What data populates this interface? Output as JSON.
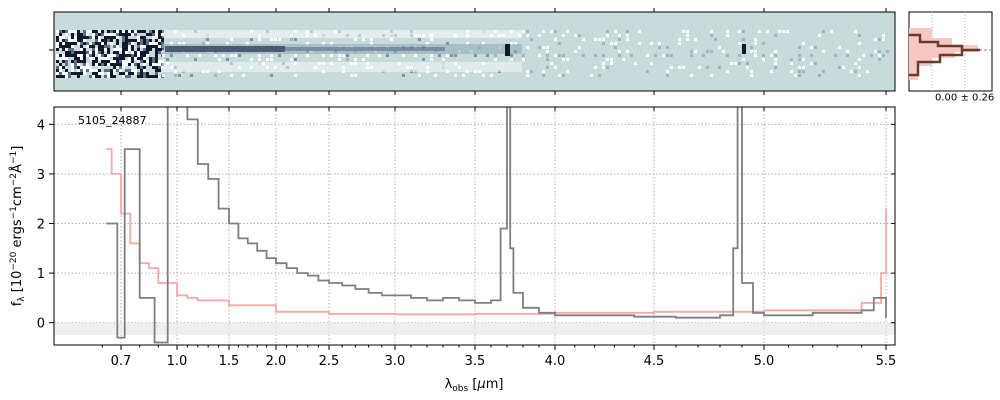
{
  "chart_data": [
    {
      "panel": "spectrum",
      "type": "line",
      "object_label": "5105_24887",
      "xlabel": "λ_obs [μm]",
      "ylabel": "f_λ [10^-20 ergs^-1 cm^-2 Å^-1]",
      "xlim": [
        0.58,
        5.52
      ],
      "ylim": [
        -0.45,
        4.35
      ],
      "x_scale": "reciprocal-like (tick spacing compresses toward long wavelengths)",
      "xtick_labels": [
        "0.7",
        "1.0",
        "1.5",
        "2.0",
        "2.5",
        "3.0",
        "3.5",
        "4.0",
        "4.5",
        "5.0",
        "5.5"
      ],
      "xtick_values": [
        0.7,
        1.0,
        1.5,
        2.0,
        2.5,
        3.0,
        3.5,
        4.0,
        4.5,
        5.0,
        5.5
      ],
      "ytick_labels": [
        "0",
        "1",
        "2",
        "3",
        "4"
      ],
      "ytick_values": [
        0,
        1,
        2,
        3,
        4
      ],
      "grid": true,
      "colors": {
        "data": "#7f7f7f",
        "error": "#f4a9a8",
        "zero_band": "#d9d9d9"
      },
      "series": [
        {
          "role": "data",
          "x": [
            0.62,
            0.68,
            0.72,
            0.8,
            0.88,
            0.95,
            1.0,
            1.05,
            1.1,
            1.2,
            1.3,
            1.4,
            1.5,
            1.6,
            1.7,
            1.8,
            1.9,
            2.0,
            2.1,
            2.2,
            2.3,
            2.4,
            2.5,
            2.6,
            2.7,
            2.8,
            2.9,
            3.0,
            3.1,
            3.2,
            3.3,
            3.4,
            3.5,
            3.6,
            3.66,
            3.7,
            3.72,
            3.74,
            3.8,
            3.9,
            4.0,
            4.2,
            4.4,
            4.6,
            4.8,
            4.86,
            4.88,
            4.9,
            4.95,
            5.0,
            5.2,
            5.4,
            5.45,
            5.5
          ],
          "y": [
            2.0,
            -0.3,
            3.5,
            0.5,
            -0.4,
            4.6,
            4.4,
            4.6,
            4.1,
            3.2,
            2.9,
            2.3,
            2.0,
            1.7,
            1.6,
            1.45,
            1.3,
            1.2,
            1.1,
            1.0,
            0.95,
            0.85,
            0.8,
            0.75,
            0.68,
            0.6,
            0.55,
            0.55,
            0.5,
            0.45,
            0.5,
            0.45,
            0.4,
            0.45,
            1.9,
            4.4,
            1.5,
            0.6,
            0.3,
            0.2,
            0.15,
            0.15,
            0.12,
            0.1,
            0.15,
            1.5,
            4.4,
            0.8,
            0.2,
            0.15,
            0.2,
            0.25,
            0.5,
            0.1
          ]
        },
        {
          "role": "error",
          "x": [
            0.62,
            0.65,
            0.7,
            0.75,
            0.8,
            0.85,
            0.9,
            1.0,
            1.1,
            1.2,
            1.5,
            2.0,
            2.5,
            3.0,
            3.5,
            4.0,
            4.5,
            5.0,
            5.4,
            5.48,
            5.5
          ],
          "y": [
            3.5,
            3.0,
            2.2,
            1.6,
            1.2,
            1.1,
            0.8,
            0.55,
            0.5,
            0.45,
            0.35,
            0.22,
            0.18,
            0.17,
            0.18,
            0.2,
            0.22,
            0.25,
            0.4,
            1.0,
            2.3
          ]
        }
      ]
    },
    {
      "panel": "2d-spectrum",
      "type": "heatmap",
      "colors": {
        "background": "#c6dbda",
        "dark": "#101a2c",
        "light": "#ffffff"
      }
    },
    {
      "panel": "profile",
      "type": "line",
      "annotation": "0.00 ± 0.26",
      "colors": {
        "line": "#6b3a2a",
        "fill": "#f7c9c4"
      }
    }
  ]
}
